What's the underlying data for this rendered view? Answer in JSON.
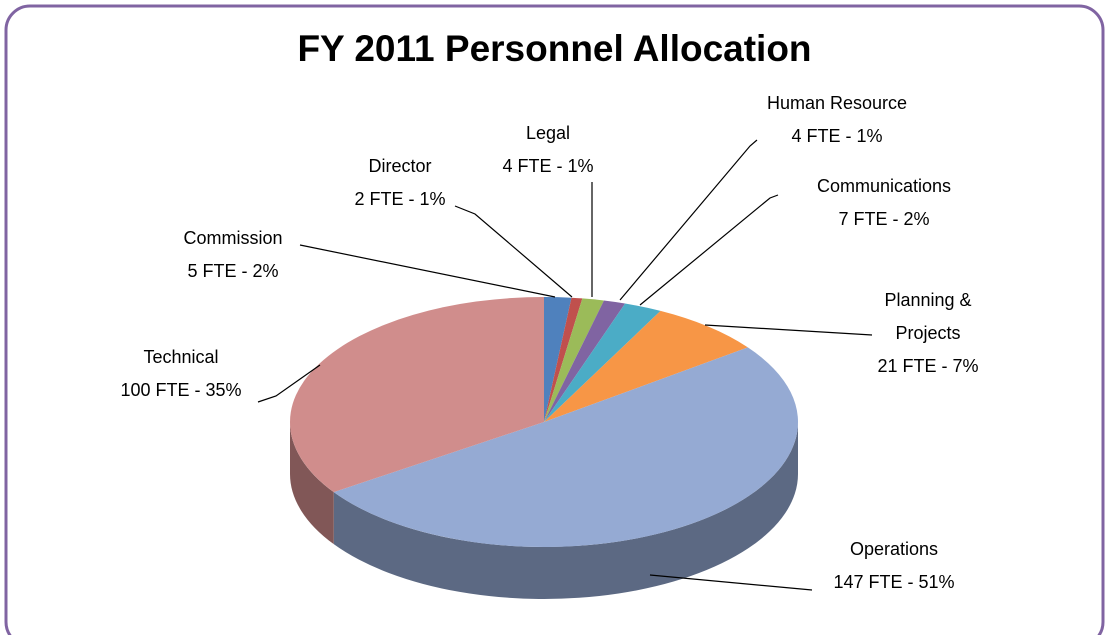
{
  "chart_data": {
    "type": "pie",
    "title": "FY 2011 Personnel Allocation",
    "categories": [
      "Commission",
      "Director",
      "Legal",
      "Human Resource",
      "Communications",
      "Planning & Projects",
      "Operations",
      "Technical"
    ],
    "values": [
      5,
      2,
      4,
      4,
      7,
      21,
      147,
      100
    ],
    "value_labels": [
      "5 FTE - 2%",
      "2 FTE - 1%",
      "4 FTE - 1%",
      "4 FTE - 1%",
      "7 FTE - 2%",
      "21 FTE - 7%",
      "147 FTE - 51%",
      "100 FTE - 35%"
    ],
    "colors": [
      "#4f81bd",
      "#c0504d",
      "#9bbb59",
      "#8064a2",
      "#4bacc6",
      "#f79646",
      "#95aad3",
      "#d08d8c"
    ]
  }
}
